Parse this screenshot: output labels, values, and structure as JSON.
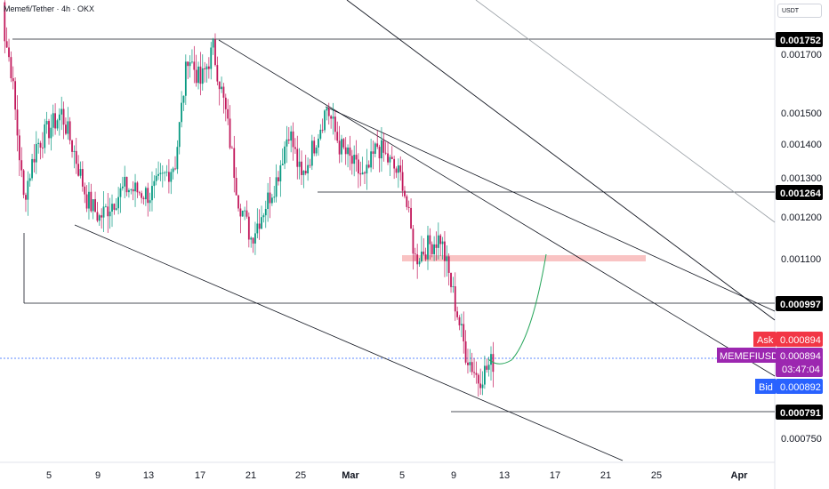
{
  "header": {
    "symbol_title": "Memefi/Tether · 4h · OKX",
    "currency_button": "USDT"
  },
  "colors": {
    "up": "#089981",
    "down": "#c2185b",
    "line": "#131722",
    "zone": "#f8b4b4",
    "projection": "#26a65b",
    "ask": "#f23645",
    "bid": "#2962ff",
    "symbol_tag": "#9c27b0"
  },
  "chart_data": {
    "type": "candlestick",
    "symbol": "MEMEFIUSDT",
    "interval": "4h",
    "exchange": "OKX",
    "y_axis": {
      "scale": "log",
      "ticks": [
        "0.001700",
        "0.001500",
        "0.001400",
        "0.001300",
        "0.001200",
        "0.001100",
        "0.000750"
      ]
    },
    "x_axis": {
      "ticks": [
        "5",
        "9",
        "13",
        "17",
        "21",
        "25",
        "Mar",
        "5",
        "9",
        "13",
        "17",
        "21",
        "25",
        "Apr"
      ]
    },
    "price_levels": [
      {
        "label": "0.001752"
      },
      {
        "label": "0.001264"
      },
      {
        "label": "0.000997"
      },
      {
        "label": "0.000791"
      }
    ],
    "quote_tags": {
      "ask_label": "Ask",
      "ask_value": "0.000894",
      "symbol_label": "MEMEFIUSDT",
      "last_value": "0.000894",
      "countdown": "03:47:04",
      "bid_label": "Bid",
      "bid_value": "0.000892"
    },
    "resistance_zone": {
      "price_from": 0.00108,
      "price_to": 0.0011
    },
    "price_path": [
      {
        "t": "Feb 1",
        "p": 0.0019
      },
      {
        "t": "Feb 2",
        "p": 0.00165
      },
      {
        "t": "Feb 3",
        "p": 0.00125
      },
      {
        "t": "Feb 4",
        "p": 0.0014
      },
      {
        "t": "Feb 6",
        "p": 0.0015
      },
      {
        "t": "Feb 7",
        "p": 0.00138
      },
      {
        "t": "Feb 8",
        "p": 0.00125
      },
      {
        "t": "Feb 9",
        "p": 0.0012
      },
      {
        "t": "Feb 11",
        "p": 0.00128
      },
      {
        "t": "Feb 13",
        "p": 0.00126
      },
      {
        "t": "Feb 15",
        "p": 0.00135
      },
      {
        "t": "Feb 16",
        "p": 0.0017
      },
      {
        "t": "Feb 17",
        "p": 0.0016
      },
      {
        "t": "Feb 18",
        "p": 0.00172
      },
      {
        "t": "Feb 19",
        "p": 0.0015
      },
      {
        "t": "Feb 20",
        "p": 0.00125
      },
      {
        "t": "Feb 21",
        "p": 0.00115
      },
      {
        "t": "Feb 23",
        "p": 0.0013
      },
      {
        "t": "Feb 24",
        "p": 0.00145
      },
      {
        "t": "Feb 25",
        "p": 0.0013
      },
      {
        "t": "Feb 27",
        "p": 0.00152
      },
      {
        "t": "Feb 28",
        "p": 0.0014
      },
      {
        "t": "Mar 1",
        "p": 0.0013
      },
      {
        "t": "Mar 2",
        "p": 0.0014
      },
      {
        "t": "Mar 4",
        "p": 0.0013
      },
      {
        "t": "Mar 5",
        "p": 0.0011
      },
      {
        "t": "Mar 6",
        "p": 0.00113
      },
      {
        "t": "Mar 7",
        "p": 0.00115
      },
      {
        "t": "Mar 8",
        "p": 0.00102
      },
      {
        "t": "Mar 9",
        "p": 0.0009
      },
      {
        "t": "Mar 10",
        "p": 0.00085
      },
      {
        "t": "Mar 11",
        "p": 0.00088
      },
      {
        "t": "Mar 12",
        "p": 0.00089
      }
    ]
  }
}
